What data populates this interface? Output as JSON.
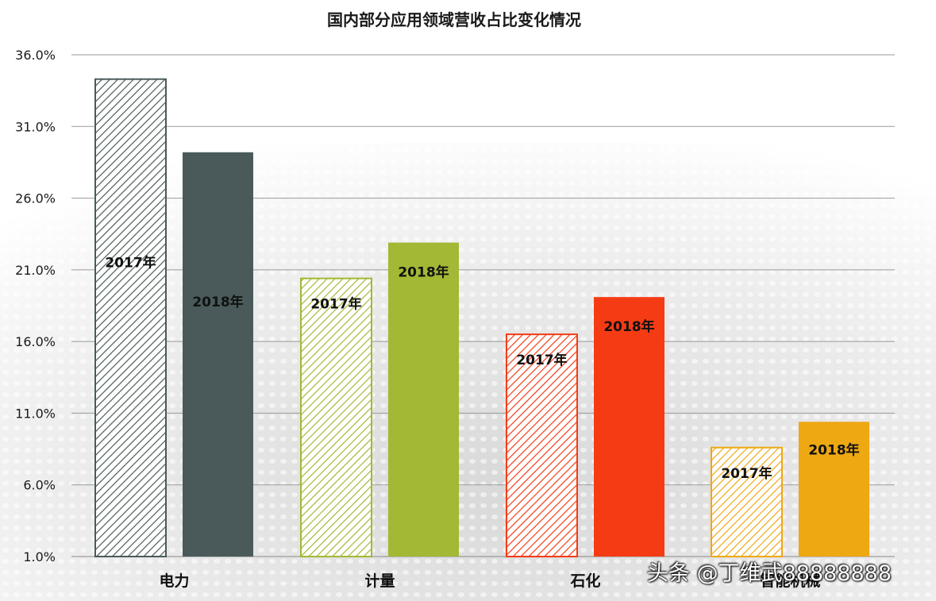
{
  "chart_data": {
    "type": "bar",
    "title": "国内部分应用领域营收占比变化情况",
    "categories": [
      "电力",
      "计量",
      "石化",
      "智能机械"
    ],
    "series": [
      {
        "name": "2017年",
        "values": [
          34.3,
          20.4,
          16.5,
          8.6
        ]
      },
      {
        "name": "2018年",
        "values": [
          29.2,
          22.9,
          19.1,
          10.4
        ]
      }
    ],
    "ylim": [
      1.0,
      36.0
    ],
    "yticks": [
      "1.0%",
      "6.0%",
      "11.0%",
      "16.0%",
      "21.0%",
      "26.0%",
      "31.0%",
      "36.0%"
    ],
    "grid": true,
    "colors": [
      {
        "c2017": "#4a5a5a",
        "c2018": "#4a5a5a"
      },
      {
        "c2017": "#a3b834",
        "c2018": "#a3b834"
      },
      {
        "c2017": "#f53b14",
        "c2018": "#f53b14"
      },
      {
        "c2017": "#eea812",
        "c2018": "#eea812"
      }
    ]
  },
  "watermark": "头条 @丁维武88888888"
}
